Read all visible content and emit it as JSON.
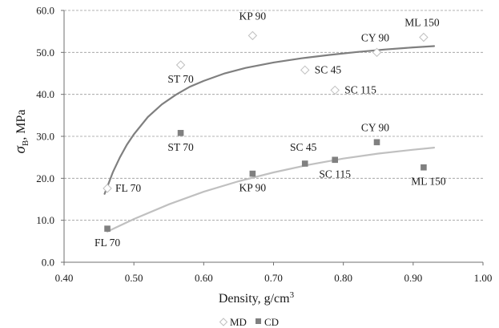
{
  "chart_data": {
    "type": "scatter",
    "xlabel": "Density, g/cm",
    "xlabel_sup": "3",
    "ylabel_sym": "σ",
    "ylabel_sub": "B",
    "ylabel_unit": ", MPa",
    "xlim": [
      0.4,
      1.0
    ],
    "ylim": [
      0.0,
      60.0
    ],
    "x_ticks": [
      "0.40",
      "0.50",
      "0.60",
      "0.70",
      "0.80",
      "0.90",
      "1.00"
    ],
    "y_ticks": [
      "0.0",
      "10.0",
      "20.0",
      "30.0",
      "40.0",
      "50.0",
      "60.0"
    ],
    "grid": "horizontal dashed",
    "legend_position": "bottom",
    "series": [
      {
        "name": "MD",
        "marker": "diamond",
        "color": "#bfbfbf",
        "points": [
          {
            "label": "FL 70",
            "x": 0.462,
            "y": 17.6
          },
          {
            "label": "ST 70",
            "x": 0.567,
            "y": 47.0
          },
          {
            "label": "KP 90",
            "x": 0.67,
            "y": 54.0
          },
          {
            "label": "SC 45",
            "x": 0.745,
            "y": 45.8
          },
          {
            "label": "SC 115",
            "x": 0.788,
            "y": 41.0
          },
          {
            "label": "CY 90",
            "x": 0.848,
            "y": 50.0
          },
          {
            "label": "ML 150",
            "x": 0.915,
            "y": 53.6
          }
        ],
        "trend": {
          "color": "#7f7f7f",
          "x": [
            0.458,
            0.47,
            0.48,
            0.49,
            0.5,
            0.52,
            0.54,
            0.56,
            0.58,
            0.6,
            0.63,
            0.66,
            0.7,
            0.74,
            0.78,
            0.82,
            0.86,
            0.9,
            0.93
          ],
          "y": [
            16.3,
            21.5,
            25.0,
            28.0,
            30.5,
            34.6,
            37.6,
            39.9,
            41.8,
            43.2,
            45.0,
            46.3,
            47.6,
            48.6,
            49.4,
            50.1,
            50.7,
            51.2,
            51.5
          ]
        }
      },
      {
        "name": "CD",
        "marker": "square",
        "color": "#808080",
        "points": [
          {
            "label": "FL 70",
            "x": 0.462,
            "y": 8.0
          },
          {
            "label": "ST 70",
            "x": 0.567,
            "y": 30.8
          },
          {
            "label": "KP 90",
            "x": 0.67,
            "y": 21.1
          },
          {
            "label": "SC 45",
            "x": 0.745,
            "y": 23.5
          },
          {
            "label": "SC 115",
            "x": 0.788,
            "y": 24.4
          },
          {
            "label": "CY 90",
            "x": 0.848,
            "y": 28.6
          },
          {
            "label": "ML 150",
            "x": 0.915,
            "y": 22.6
          }
        ],
        "trend": {
          "color": "#c0c0c0",
          "x": [
            0.462,
            0.5,
            0.55,
            0.6,
            0.65,
            0.7,
            0.75,
            0.8,
            0.85,
            0.9,
            0.93
          ],
          "y": [
            7.3,
            10.3,
            13.8,
            16.8,
            19.3,
            21.4,
            23.2,
            24.7,
            25.9,
            26.8,
            27.3
          ]
        }
      }
    ]
  }
}
